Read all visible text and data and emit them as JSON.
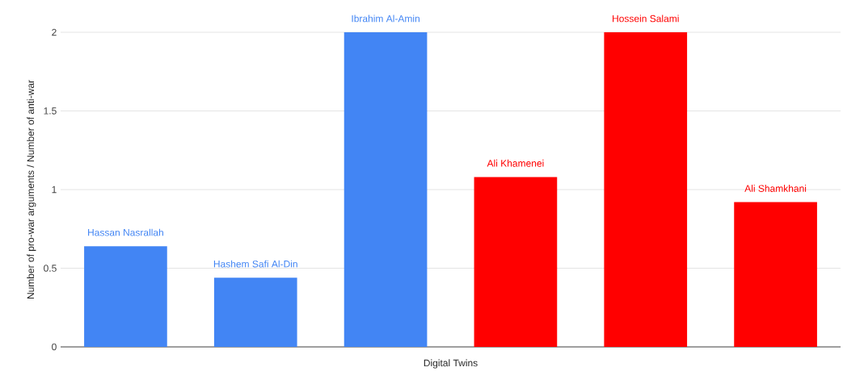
{
  "chart_data": {
    "type": "bar",
    "xlabel": "Digital Twins",
    "ylabel": "Number of pro-war arguments / Number of anti-war",
    "categories": [
      "Hassan Nasrallah",
      "Hashem Safi Al-Din",
      "Ibrahim Al-Amin",
      "Ali Khamenei",
      "Hossein Salami",
      "Ali Shamkhani"
    ],
    "values": [
      0.64,
      0.44,
      2,
      1.08,
      2,
      0.92
    ],
    "colors": [
      "#4285f4",
      "#4285f4",
      "#4285f4",
      "#ff0000",
      "#ff0000",
      "#ff0000"
    ],
    "ylim": [
      0,
      2
    ],
    "yticks": [
      0,
      0.5,
      1,
      1.5,
      2
    ],
    "grid": "y"
  }
}
